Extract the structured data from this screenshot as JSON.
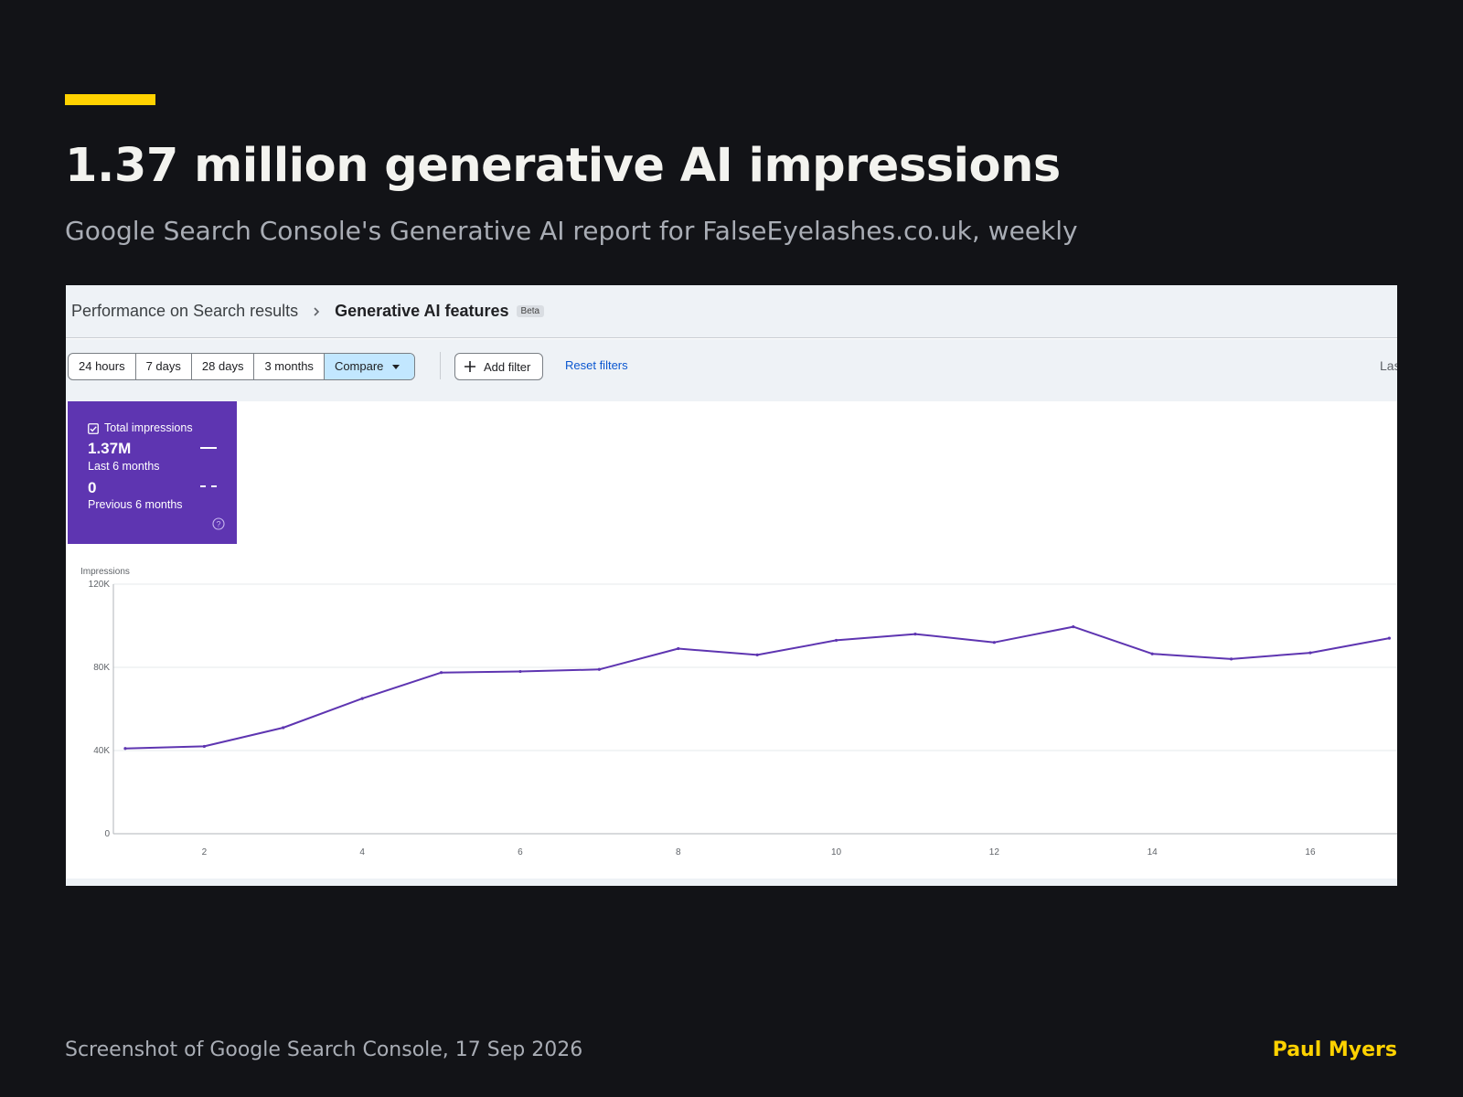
{
  "slide": {
    "headline": "1.37 million generative AI impressions",
    "subtitle": "Google Search Console's Generative AI report for FalseEyelashes.co.uk, weekly",
    "footer_left": "Screenshot of Google Search Console, 17 Sep 2026",
    "footer_right": "Paul Myers",
    "accent_color": "#FFD200"
  },
  "gsc": {
    "breadcrumb": {
      "parent": "Performance on Search results",
      "current": "Generative AI features",
      "badge": "Beta"
    },
    "date_ranges": [
      "24 hours",
      "7 days",
      "28 days",
      "3 months"
    ],
    "compare_label": "Compare",
    "add_filter_label": "Add filter",
    "reset_filters_label": "Reset filters",
    "truncated_right_label": "Las",
    "metric_card": {
      "label": "Total impressions",
      "checked": true,
      "current_value": "1.37M",
      "current_period": "Last 6 months",
      "previous_value": "0",
      "previous_period": "Previous 6 months",
      "color": "#5E35B1"
    }
  },
  "chart_data": {
    "type": "line",
    "ylabel": "Impressions",
    "xlabel": "",
    "y_ticks": [
      "0",
      "40K",
      "80K",
      "120K"
    ],
    "ylim": [
      0,
      120000
    ],
    "x_ticks": [
      2,
      4,
      6,
      8,
      10,
      12,
      14,
      16
    ],
    "x_range": [
      0.85,
      17.1
    ],
    "grid": true,
    "series": [
      {
        "color": "#5E35B1",
        "x": [
          1,
          2,
          3,
          4,
          5,
          6,
          7,
          8,
          9,
          10,
          11,
          12,
          13,
          14,
          15,
          16,
          17
        ],
        "values": [
          41000,
          42000,
          51000,
          65000,
          77500,
          78000,
          79000,
          89000,
          86000,
          93000,
          96000,
          92000,
          99500,
          86500,
          84000,
          87000,
          94000
        ]
      }
    ]
  }
}
